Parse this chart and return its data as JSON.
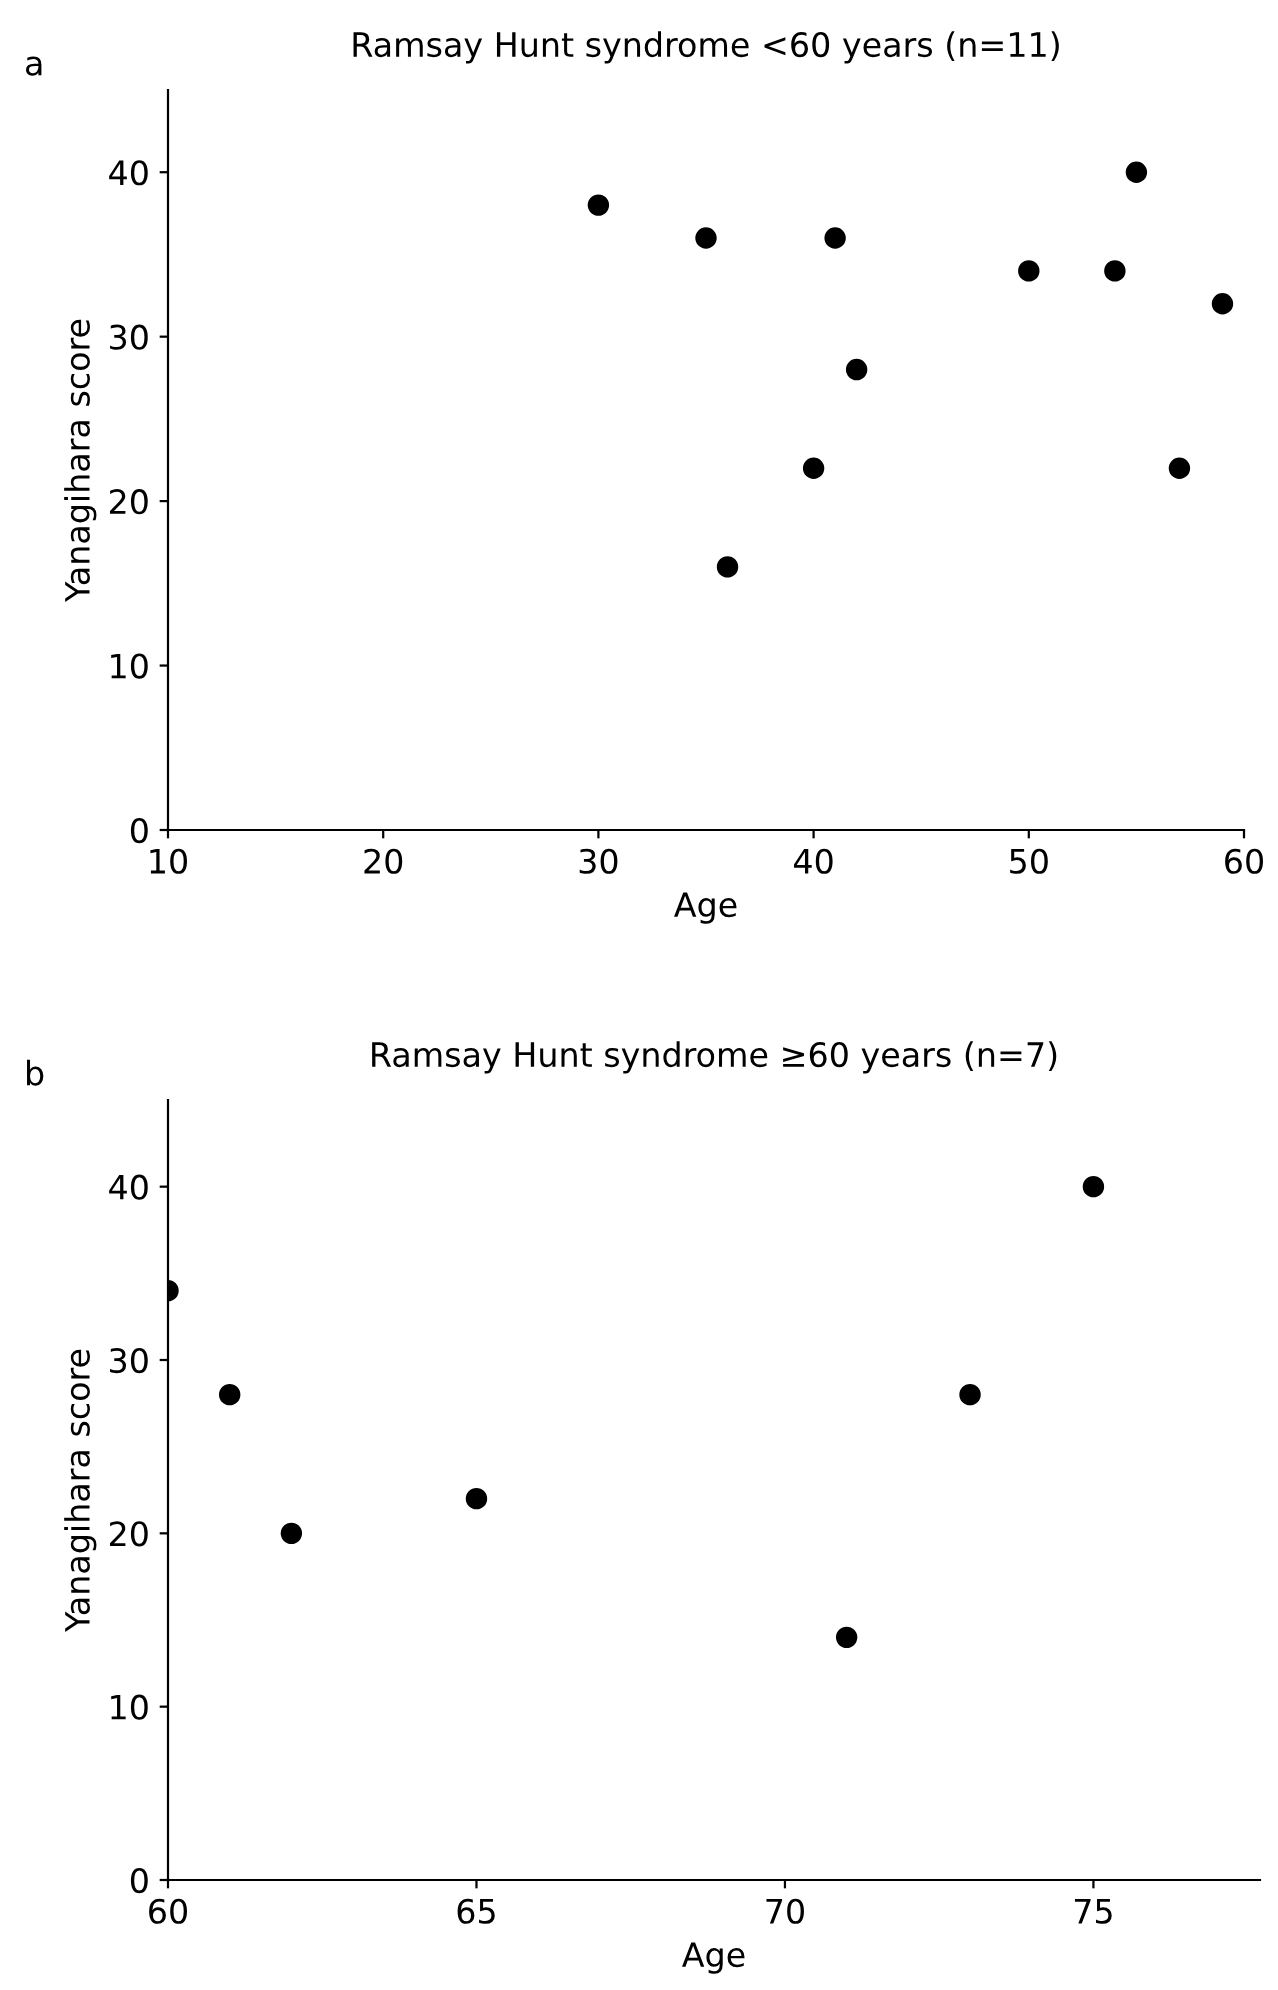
{
  "chart_data": [
    {
      "type": "scatter",
      "title": "Ramsay Hunt syndrome <60 years (n=11)",
      "xlabel": "Age",
      "ylabel": "Yanagihara score",
      "annotations": [
        "a"
      ],
      "x": [
        30,
        35,
        36,
        40,
        41,
        42,
        50,
        54,
        55,
        57,
        59
      ],
      "values": [
        38,
        36,
        16,
        22,
        36,
        28,
        34,
        34,
        40,
        22,
        32
      ],
      "color": "#000000",
      "marker": "circle",
      "xlim": [
        10,
        60
      ],
      "xticks": [
        10,
        20,
        30,
        40,
        50,
        60
      ],
      "ylim": [
        0,
        45
      ],
      "yticks": [
        0,
        10,
        20,
        30,
        40
      ],
      "grid": false
    },
    {
      "type": "scatter",
      "title": "Ramsay Hunt syndrome ≥60 years (n=7)",
      "xlabel": "Age",
      "ylabel": "Yanagihara score",
      "annotations": [
        "b"
      ],
      "x": [
        60,
        61,
        62,
        65,
        71,
        73,
        75
      ],
      "values": [
        34,
        28,
        20,
        22,
        14,
        28,
        40
      ],
      "color": "#000000",
      "marker": "circle",
      "xlim": [
        60,
        77.7
      ],
      "xticks": [
        60,
        65,
        70,
        75
      ],
      "ylim": [
        0,
        45
      ],
      "yticks": [
        0,
        10,
        20,
        30,
        40
      ],
      "grid": false
    }
  ]
}
